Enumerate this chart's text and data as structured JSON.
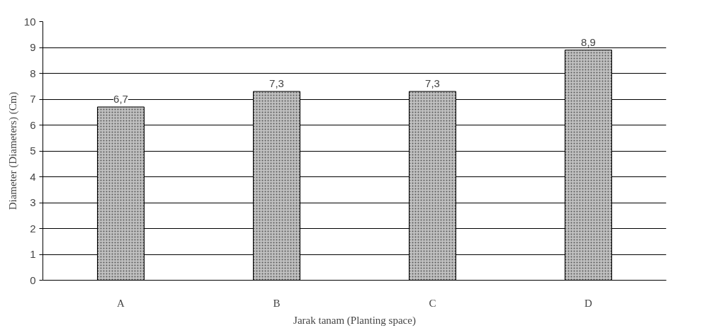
{
  "chart_data": {
    "type": "bar",
    "xlabel": "Jarak tanam (Planting space)",
    "ylabel": "Diameter (Diameters) (Cm)",
    "categories": [
      "A",
      "B",
      "C",
      "D"
    ],
    "values": [
      6.7,
      7.3,
      7.3,
      8.9
    ],
    "value_labels": [
      "6,7",
      "7,3",
      "7,3",
      "8,9"
    ],
    "color": "#c0c0c0",
    "ylim": [
      0,
      10
    ],
    "yticks": [
      0,
      1,
      2,
      3,
      4,
      5,
      6,
      7,
      8,
      9,
      10
    ],
    "grid": "y"
  }
}
